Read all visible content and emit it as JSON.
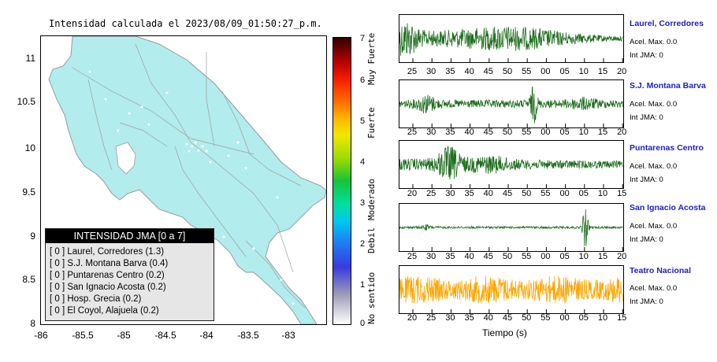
{
  "map": {
    "title": "Intensidad calculada el 2023/08/09_01:50:27_p.m.",
    "y_ticks": [
      "11",
      "10.5",
      "10",
      "9.5",
      "9",
      "8.5",
      "8"
    ],
    "x_ticks": [
      "-86",
      "-85.5",
      "-85",
      "-84.5",
      "-84",
      "-83.5",
      "-83"
    ],
    "land_color": "#b2ecec"
  },
  "legend": {
    "header": "INTENSIDAD JMA [0 a 7]",
    "rows": [
      "[ 0 ]  Laurel, Corredores (1.3)",
      "[ 0 ]  S.J. Montana Barva (0.4)",
      "[ 0 ]  Puntarenas Centro (0.2)",
      "[ 0 ]  San Ignacio Acosta (0.2)",
      "[ 0 ]  Hosp. Grecia (0.2)",
      "[ 0 ]  El Coyol, Alajuela (0.2)"
    ]
  },
  "colorbar": {
    "values": [
      "7",
      "6",
      "5",
      "4",
      "3",
      "2",
      "1",
      "0"
    ],
    "labels": [
      "Muy Fuerte",
      "Fuerte",
      "Moderado",
      "Debil",
      "No sentido"
    ]
  },
  "stations": [
    {
      "name": "Laurel, Corredores",
      "acel": "Acel. Max. 0.0",
      "int": "Int JMA: 0",
      "color": "#1e6e1e",
      "ticks": [
        "25",
        "30",
        "35",
        "40",
        "45",
        "50",
        "55",
        "00",
        "05",
        "10",
        "15",
        "20"
      ]
    },
    {
      "name": "S.J. Montana Barva",
      "acel": "Acel. Max. 0.0",
      "int": "Int JMA: 0",
      "color": "#1e6e1e",
      "ticks": [
        "25",
        "30",
        "35",
        "40",
        "45",
        "50",
        "55",
        "00",
        "05",
        "10",
        "15",
        "20"
      ]
    },
    {
      "name": "Puntarenas Centro",
      "acel": "Acel. Max. 0.0",
      "int": "Int JMA: 0",
      "color": "#1e6e1e",
      "ticks": [
        "20",
        "25",
        "30",
        "35",
        "40",
        "45",
        "50",
        "55",
        "00",
        "05",
        "10",
        "15"
      ]
    },
    {
      "name": "San Ignacio Acosta",
      "acel": "Acel. Max. 0.0",
      "int": "Int JMA: 0",
      "color": "#1e6e1e",
      "ticks": [
        "25",
        "30",
        "35",
        "40",
        "45",
        "50",
        "55",
        "00",
        "05",
        "10",
        "15",
        "20"
      ]
    },
    {
      "name": "Teatro Nacional",
      "acel": "Acel. Max. 0.0",
      "int": "Int JMA: 0",
      "color": "#ffa500",
      "ticks": [
        "20",
        "25",
        "30",
        "35",
        "40",
        "45",
        "50",
        "55",
        "00",
        "05",
        "10",
        "15"
      ]
    }
  ],
  "time_axis_label": "Tiempo (s)"
}
